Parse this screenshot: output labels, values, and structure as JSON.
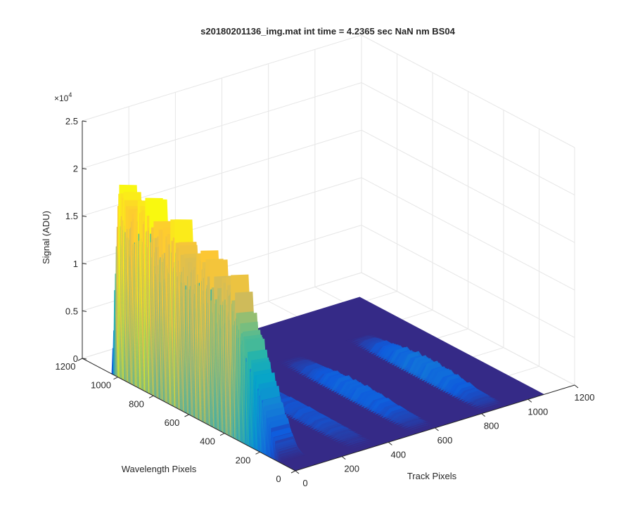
{
  "chart_data": {
    "type": "surface",
    "title": "s20180201136_img.mat int time = 4.2365 sec  NaN nm BS04",
    "xlabel": "Track Pixels",
    "ylabel": "Wavelength Pixels",
    "zlabel": "Signal (ADU)",
    "z_exponent_label": "×10",
    "z_exponent_power": "4",
    "xlim": [
      0,
      1200
    ],
    "ylim": [
      0,
      1200
    ],
    "zlim": [
      0,
      25000
    ],
    "x_ticks": [
      "0",
      "200",
      "400",
      "600",
      "800",
      "1000",
      "1200"
    ],
    "y_ticks": [
      "0",
      "200",
      "400",
      "600",
      "800",
      "1000",
      "1200"
    ],
    "z_ticks": [
      "0",
      "0.5",
      "1",
      "1.5",
      "2",
      "2.5"
    ],
    "grid": true,
    "colormap": [
      "#352a87",
      "#0f5cdd",
      "#1481d6",
      "#06a4ca",
      "#2eb7a4",
      "#87bf77",
      "#d1bb59",
      "#fec832",
      "#f9fb0e"
    ],
    "tracks": [
      {
        "x_center": 60,
        "x_halfwidth": 50,
        "y_range": [
          0,
          1040
        ],
        "peak_signal": 20500
      },
      {
        "x_center": 310,
        "x_halfwidth": 55,
        "y_range": [
          0,
          780
        ],
        "peak_signal": 800
      },
      {
        "x_center": 560,
        "x_halfwidth": 55,
        "y_range": [
          0,
          780
        ],
        "peak_signal": 1200
      },
      {
        "x_center": 860,
        "x_halfwidth": 55,
        "y_range": [
          0,
          780
        ],
        "peak_signal": 1500
      }
    ]
  }
}
